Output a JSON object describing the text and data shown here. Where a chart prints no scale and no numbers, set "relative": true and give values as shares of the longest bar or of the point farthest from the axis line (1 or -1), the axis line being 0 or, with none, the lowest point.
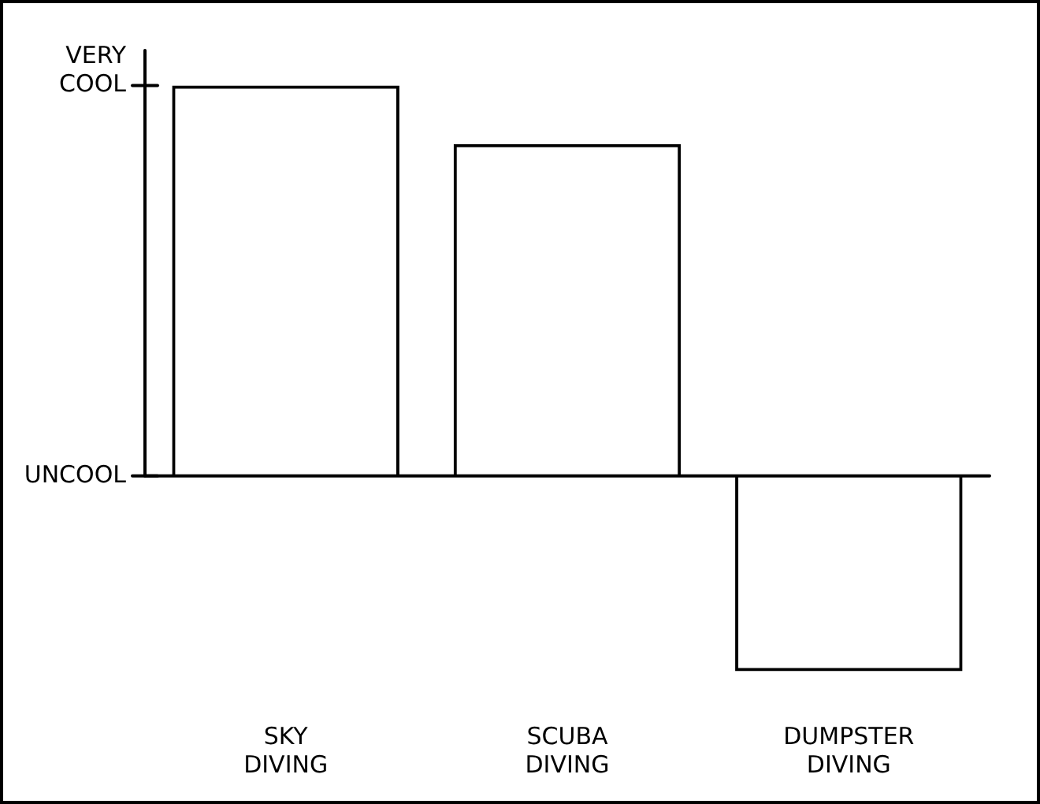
{
  "chart_data": {
    "type": "bar",
    "categories": [
      "SKY DIVING",
      "SCUBA DIVING",
      "DUMPSTER DIVING"
    ],
    "values": [
      1,
      0.85,
      -0.5
    ],
    "color": "#000000",
    "relative": true,
    "annotations": [
      "VERY COOL",
      "UNCOOL"
    ],
    "legend": false
  }
}
